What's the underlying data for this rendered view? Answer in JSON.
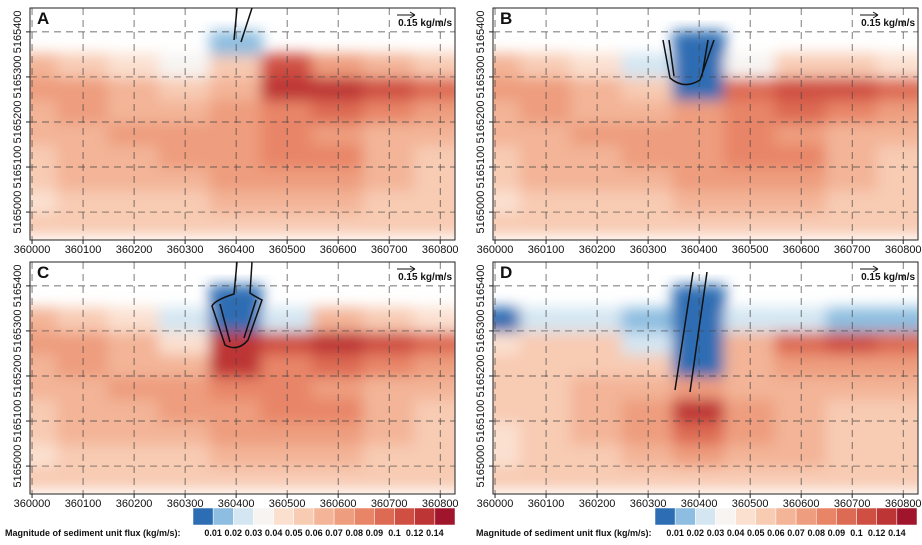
{
  "chart_data": [
    {
      "type": "heatmap",
      "label": "A",
      "scale_label": "0.15 kg/m/s",
      "xlim": [
        359996,
        360829
      ],
      "ylim": [
        5164938,
        5165453
      ],
      "xticks": [
        360000,
        360100,
        360200,
        360300,
        360400,
        360500,
        360600,
        360700,
        360800
      ],
      "yticks": [
        5165000,
        5165100,
        5165200,
        5165300,
        5165400
      ],
      "x": [
        360000,
        360100,
        360200,
        360300,
        360400,
        360500,
        360600,
        360700,
        360800
      ],
      "y": [
        5164975,
        5165025,
        5165075,
        5165125,
        5165175,
        5165225,
        5165275,
        5165325,
        5165375,
        5165425
      ],
      "z": [
        [
          0.05,
          0.05,
          0.05,
          0.05,
          0.05,
          0.05,
          0.05,
          0.05,
          0.05
        ],
        [
          0.04,
          0.05,
          0.05,
          0.05,
          0.06,
          0.06,
          0.06,
          0.05,
          0.05
        ],
        [
          0.05,
          0.06,
          0.06,
          0.06,
          0.07,
          0.07,
          0.07,
          0.06,
          0.05
        ],
        [
          0.05,
          0.06,
          0.06,
          0.07,
          0.07,
          0.08,
          0.08,
          0.06,
          0.05
        ],
        [
          0.06,
          0.06,
          0.07,
          0.07,
          0.07,
          0.08,
          0.07,
          0.06,
          0.06
        ],
        [
          0.06,
          0.07,
          0.06,
          0.06,
          0.07,
          0.08,
          0.09,
          0.08,
          0.07
        ],
        [
          0.07,
          0.07,
          0.06,
          0.05,
          0.06,
          0.12,
          0.12,
          0.1,
          0.09
        ],
        [
          0.06,
          0.05,
          0.04,
          0.03,
          0.05,
          0.1,
          0.07,
          0.06,
          0.05
        ],
        [
          null,
          null,
          null,
          null,
          0.01,
          null,
          null,
          null,
          null
        ],
        [
          null,
          null,
          null,
          null,
          null,
          null,
          null,
          null,
          null
        ]
      ]
    },
    {
      "type": "heatmap",
      "label": "B",
      "scale_label": "0.15 kg/m/s",
      "xlim": [
        359996,
        360829
      ],
      "ylim": [
        5164938,
        5165453
      ],
      "xticks": [
        360000,
        360100,
        360200,
        360300,
        360400,
        360500,
        360600,
        360700,
        360800
      ],
      "yticks": [
        5165000,
        5165100,
        5165200,
        5165300,
        5165400
      ],
      "x": [
        360000,
        360100,
        360200,
        360300,
        360400,
        360500,
        360600,
        360700,
        360800
      ],
      "y": [
        5164975,
        5165025,
        5165075,
        5165125,
        5165175,
        5165225,
        5165275,
        5165325,
        5165375,
        5165425
      ],
      "z": [
        [
          0.05,
          0.05,
          0.05,
          0.05,
          0.05,
          0.05,
          0.05,
          0.05,
          0.05
        ],
        [
          0.04,
          0.05,
          0.05,
          0.05,
          0.06,
          0.06,
          0.06,
          0.05,
          0.05
        ],
        [
          0.05,
          0.06,
          0.06,
          0.06,
          0.07,
          0.07,
          0.07,
          0.06,
          0.05
        ],
        [
          0.05,
          0.06,
          0.06,
          0.07,
          0.07,
          0.08,
          0.08,
          0.06,
          0.05
        ],
        [
          0.06,
          0.06,
          0.07,
          0.07,
          0.07,
          0.08,
          0.07,
          0.06,
          0.06
        ],
        [
          0.06,
          0.07,
          0.06,
          0.06,
          0.07,
          0.08,
          0.09,
          0.08,
          0.07
        ],
        [
          0.07,
          0.07,
          0.06,
          0.05,
          0.005,
          0.09,
          0.11,
          0.1,
          0.09
        ],
        [
          0.06,
          0.05,
          0.04,
          0.02,
          0.005,
          0.03,
          0.05,
          0.05,
          0.04
        ],
        [
          null,
          null,
          null,
          null,
          0.005,
          null,
          null,
          null,
          null
        ],
        [
          null,
          null,
          null,
          null,
          null,
          null,
          null,
          null,
          null
        ]
      ]
    },
    {
      "type": "heatmap",
      "label": "C",
      "scale_label": "0.15 kg/m/s",
      "xlim": [
        359996,
        360829
      ],
      "ylim": [
        5164938,
        5165453
      ],
      "xticks": [
        360000,
        360100,
        360200,
        360300,
        360400,
        360500,
        360600,
        360700,
        360800
      ],
      "yticks": [
        5165000,
        5165100,
        5165200,
        5165300,
        5165400
      ],
      "x": [
        360000,
        360100,
        360200,
        360300,
        360400,
        360500,
        360600,
        360700,
        360800
      ],
      "y": [
        5164975,
        5165025,
        5165075,
        5165125,
        5165175,
        5165225,
        5165275,
        5165325,
        5165375,
        5165425
      ],
      "z": [
        [
          0.05,
          0.05,
          0.05,
          0.05,
          0.05,
          0.05,
          0.05,
          0.05,
          0.05
        ],
        [
          0.04,
          0.05,
          0.05,
          0.05,
          0.06,
          0.06,
          0.06,
          0.05,
          0.05
        ],
        [
          0.05,
          0.06,
          0.06,
          0.06,
          0.07,
          0.07,
          0.07,
          0.06,
          0.05
        ],
        [
          0.05,
          0.06,
          0.06,
          0.07,
          0.07,
          0.08,
          0.08,
          0.06,
          0.05
        ],
        [
          0.06,
          0.06,
          0.07,
          0.07,
          0.08,
          0.08,
          0.07,
          0.06,
          0.06
        ],
        [
          0.06,
          0.07,
          0.06,
          0.06,
          0.12,
          0.08,
          0.09,
          0.08,
          0.07
        ],
        [
          0.07,
          0.07,
          0.06,
          0.04,
          0.13,
          0.1,
          0.12,
          0.1,
          0.09
        ],
        [
          0.06,
          0.05,
          0.04,
          0.02,
          0.005,
          0.02,
          0.06,
          0.05,
          0.04
        ],
        [
          null,
          null,
          null,
          null,
          0.005,
          null,
          null,
          null,
          null
        ],
        [
          null,
          null,
          null,
          null,
          null,
          null,
          null,
          null,
          null
        ]
      ]
    },
    {
      "type": "heatmap",
      "label": "D",
      "scale_label": "0.15 kg/m/s",
      "xlim": [
        359996,
        360829
      ],
      "ylim": [
        5164938,
        5165453
      ],
      "xticks": [
        360000,
        360100,
        360200,
        360300,
        360400,
        360500,
        360600,
        360700,
        360800
      ],
      "yticks": [
        5165000,
        5165100,
        5165200,
        5165300,
        5165400
      ],
      "x": [
        360000,
        360100,
        360200,
        360300,
        360400,
        360500,
        360600,
        360700,
        360800
      ],
      "y": [
        5164975,
        5165025,
        5165075,
        5165125,
        5165175,
        5165225,
        5165275,
        5165325,
        5165375,
        5165425
      ],
      "z": [
        [
          0.05,
          0.05,
          0.05,
          0.05,
          0.05,
          0.05,
          0.05,
          0.05,
          0.05
        ],
        [
          0.04,
          0.05,
          0.05,
          0.06,
          0.07,
          0.06,
          0.06,
          0.05,
          0.05
        ],
        [
          0.04,
          0.05,
          0.06,
          0.07,
          0.09,
          0.07,
          0.06,
          0.05,
          0.05
        ],
        [
          0.05,
          0.05,
          0.06,
          0.07,
          0.12,
          0.07,
          0.06,
          0.05,
          0.05
        ],
        [
          0.05,
          0.05,
          0.06,
          0.06,
          0.07,
          0.06,
          0.06,
          0.06,
          0.06
        ],
        [
          0.05,
          0.05,
          0.05,
          0.05,
          0.005,
          0.06,
          0.07,
          0.07,
          0.07
        ],
        [
          0.04,
          0.05,
          0.05,
          0.02,
          0.005,
          0.06,
          0.09,
          0.1,
          0.09
        ],
        [
          0.005,
          0.02,
          0.02,
          0.01,
          0.005,
          0.02,
          0.02,
          0.01,
          0.01
        ],
        [
          null,
          null,
          null,
          null,
          0.005,
          null,
          null,
          null,
          null
        ],
        [
          null,
          null,
          null,
          null,
          null,
          null,
          null,
          null,
          null
        ]
      ]
    }
  ],
  "colorbar": {
    "title": "Magnitude of sediment unit flux (kg/m/s):",
    "levels": [
      0.01,
      0.02,
      0.03,
      0.04,
      0.05,
      0.06,
      0.07,
      0.08,
      0.09,
      0.1,
      0.12,
      0.14
    ],
    "colors": [
      "#2d6db3",
      "#8dbde0",
      "#d4e6f2",
      "#f7f4f2",
      "#fbe0d0",
      "#f8cbb3",
      "#f3b497",
      "#ee9d7e",
      "#e88567",
      "#dd6b53",
      "#cf5043",
      "#bd3535",
      "#a0152c"
    ]
  }
}
